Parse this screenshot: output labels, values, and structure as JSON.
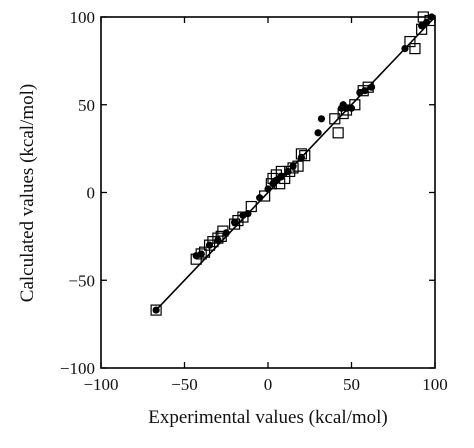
{
  "chart_data": {
    "type": "scatter",
    "xlabel": "Experimental values (kcal/mol)",
    "ylabel": "Calculated values (kcal/mol)",
    "xlim": [
      -100,
      100
    ],
    "ylim": [
      -100,
      100
    ],
    "xticks": [
      -100,
      -50,
      0,
      50,
      100
    ],
    "yticks": [
      -100,
      -50,
      0,
      50,
      100
    ],
    "xtick_labels": [
      "−100",
      "−50",
      "0",
      "50",
      "100"
    ],
    "ytick_labels": [
      "−100",
      "−50",
      "0",
      "50",
      "100"
    ],
    "grid": false,
    "legend": "none",
    "fit_line": {
      "x": [
        -67,
        100
      ],
      "y": [
        -67,
        100
      ]
    },
    "series": [
      {
        "marker": "filled-circle",
        "points": [
          [
            -67,
            -67
          ],
          [
            -43,
            -36
          ],
          [
            -40,
            -35
          ],
          [
            -35,
            -30
          ],
          [
            -30,
            -27
          ],
          [
            -25,
            -23
          ],
          [
            -20,
            -17
          ],
          [
            -15,
            -13
          ],
          [
            -12,
            -12
          ],
          [
            -5,
            -3
          ],
          [
            0,
            2
          ],
          [
            3,
            5
          ],
          [
            5,
            7
          ],
          [
            8,
            9
          ],
          [
            12,
            12
          ],
          [
            15,
            15
          ],
          [
            20,
            20
          ],
          [
            30,
            34
          ],
          [
            32,
            42
          ],
          [
            44,
            48
          ],
          [
            45,
            50
          ],
          [
            47,
            48
          ],
          [
            50,
            48
          ],
          [
            55,
            57
          ],
          [
            58,
            58
          ],
          [
            62,
            60
          ],
          [
            82,
            82
          ],
          [
            92,
            95
          ],
          [
            95,
            97
          ],
          [
            98,
            100
          ]
        ]
      },
      {
        "marker": "open-square",
        "points": [
          [
            -67,
            -67
          ],
          [
            -43,
            -38
          ],
          [
            -40,
            -35
          ],
          [
            -38,
            -34
          ],
          [
            -35,
            -30
          ],
          [
            -33,
            -28
          ],
          [
            -30,
            -26
          ],
          [
            -28,
            -25
          ],
          [
            -27,
            -22
          ],
          [
            -20,
            -18
          ],
          [
            -18,
            -16
          ],
          [
            -15,
            -14
          ],
          [
            -10,
            -8
          ],
          [
            -2,
            -2
          ],
          [
            2,
            5
          ],
          [
            3,
            8
          ],
          [
            5,
            10
          ],
          [
            7,
            5
          ],
          [
            8,
            12
          ],
          [
            10,
            8
          ],
          [
            13,
            12
          ],
          [
            15,
            14
          ],
          [
            18,
            15
          ],
          [
            20,
            22
          ],
          [
            22,
            21
          ],
          [
            40,
            42
          ],
          [
            42,
            34
          ],
          [
            45,
            45
          ],
          [
            47,
            47
          ],
          [
            52,
            50
          ],
          [
            57,
            58
          ],
          [
            60,
            60
          ],
          [
            85,
            86
          ],
          [
            88,
            82
          ],
          [
            92,
            93
          ],
          [
            93,
            100
          ],
          [
            97,
            98
          ]
        ]
      }
    ]
  }
}
